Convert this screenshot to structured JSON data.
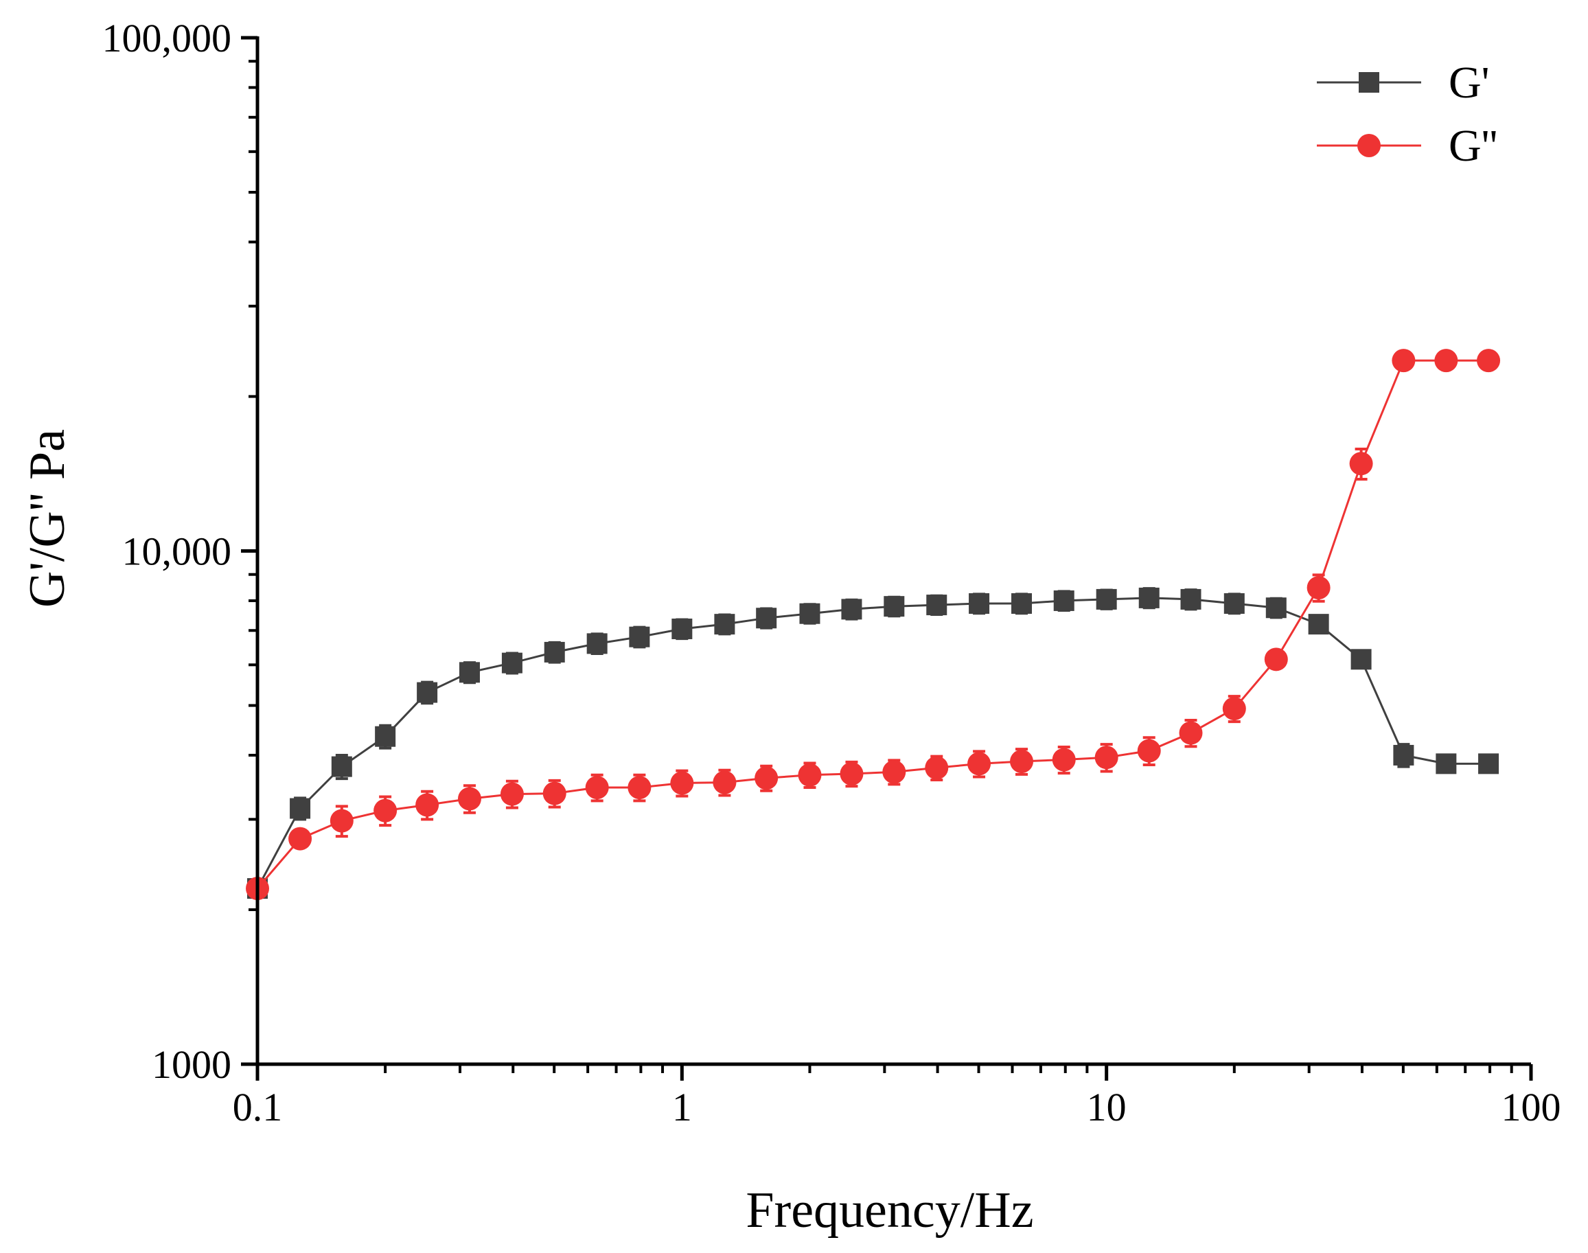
{
  "chart_data": {
    "type": "line",
    "title": "",
    "xlabel": "Frequency/Hz",
    "ylabel": "G'/G'' Pa",
    "x_scale": "log",
    "y_scale": "log",
    "xlim": [
      0.1,
      100
    ],
    "ylim": [
      1000,
      100000
    ],
    "x_ticks": [
      {
        "value": 0.1,
        "label": "0.1"
      },
      {
        "value": 1,
        "label": "1"
      },
      {
        "value": 10,
        "label": "10"
      },
      {
        "value": 100,
        "label": "100"
      }
    ],
    "y_ticks": [
      {
        "value": 1000,
        "label": "1000"
      },
      {
        "value": 10000,
        "label": "10,000"
      },
      {
        "value": 100000,
        "label": "100,000"
      }
    ],
    "legend_position": "top-right",
    "series": [
      {
        "name": "G'",
        "color": "#404040",
        "marker": "square",
        "x": [
          0.1,
          0.126,
          0.158,
          0.2,
          0.251,
          0.316,
          0.398,
          0.501,
          0.631,
          0.794,
          1,
          1.26,
          1.58,
          2,
          2.51,
          3.16,
          3.98,
          5.01,
          6.31,
          7.94,
          10,
          12.6,
          15.8,
          20,
          25.1,
          31.6,
          39.8,
          50.1,
          63.1,
          79.4
        ],
        "values": [
          2200,
          3150,
          3800,
          4350,
          5300,
          5800,
          6050,
          6350,
          6600,
          6800,
          7050,
          7200,
          7400,
          7550,
          7700,
          7800,
          7850,
          7900,
          7900,
          8000,
          8050,
          8100,
          8050,
          7900,
          7750,
          7200,
          6150,
          4000,
          3850,
          3850
        ],
        "errors": [
          0,
          150,
          200,
          220,
          250,
          260,
          270,
          280,
          290,
          300,
          300,
          310,
          320,
          320,
          330,
          330,
          330,
          340,
          340,
          340,
          340,
          350,
          350,
          340,
          330,
          0,
          0,
          200,
          0,
          0
        ]
      },
      {
        "name": "G''",
        "color": "#ee3333",
        "marker": "circle",
        "x": [
          0.1,
          0.126,
          0.158,
          0.2,
          0.251,
          0.316,
          0.398,
          0.501,
          0.631,
          0.794,
          1,
          1.26,
          1.58,
          2,
          2.51,
          3.16,
          3.98,
          5.01,
          6.31,
          7.94,
          10,
          12.6,
          15.8,
          20,
          25.1,
          31.6,
          39.8,
          50.1,
          63.1,
          79.4
        ],
        "values": [
          2200,
          2750,
          2980,
          3120,
          3200,
          3290,
          3360,
          3370,
          3460,
          3460,
          3530,
          3540,
          3610,
          3660,
          3680,
          3710,
          3780,
          3850,
          3890,
          3920,
          3960,
          4080,
          4420,
          4930,
          6150,
          8480,
          14800,
          23500,
          23500,
          23500
        ],
        "errors": [
          0,
          0,
          200,
          200,
          200,
          200,
          200,
          200,
          200,
          200,
          200,
          200,
          200,
          200,
          200,
          200,
          200,
          220,
          220,
          230,
          240,
          250,
          260,
          280,
          0,
          500,
          1000,
          0,
          0,
          0
        ]
      }
    ]
  }
}
